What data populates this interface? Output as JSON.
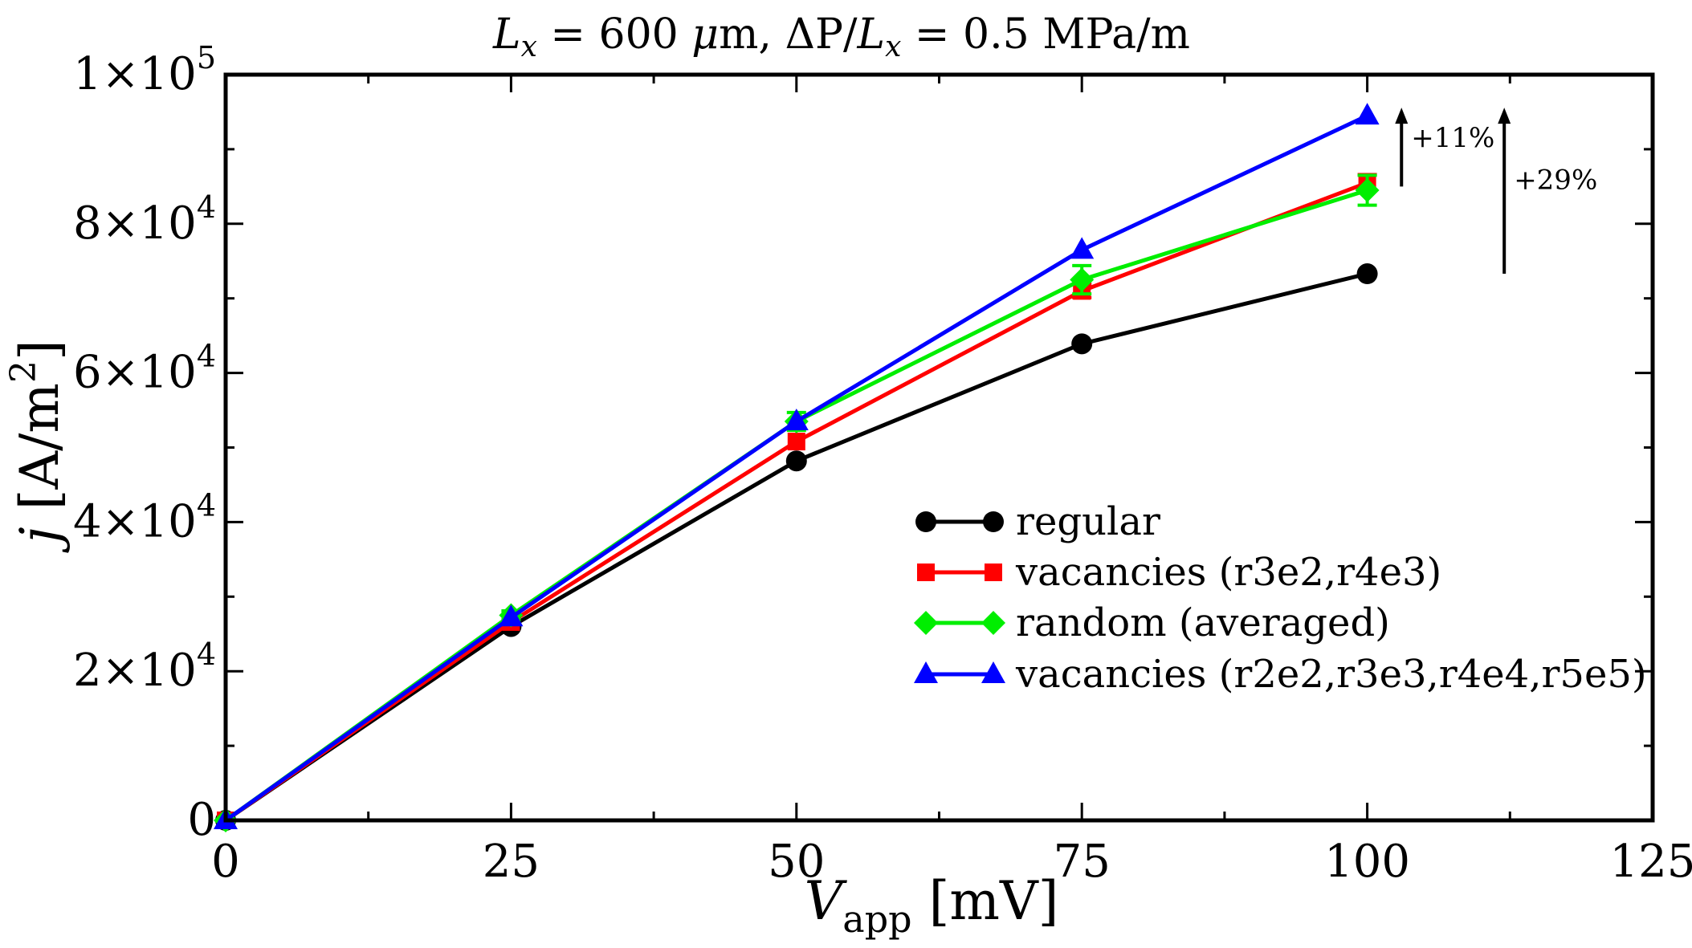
{
  "chart_data": {
    "type": "line",
    "title": "L_x = 600 μm, ΔP/L_x = 0.5 MPa/m",
    "title_parts": {
      "lx_symbol": "L",
      "lx_sub": "x",
      "eq1": " = 600 ",
      "mu": "μ",
      "unit1": "m, ",
      "delta_p": "ΔP/",
      "lx2_symbol": "L",
      "lx2_sub": "x",
      "eq2": " = 0.5 MPa/m"
    },
    "xlabel": "V_app [mV]",
    "xlabel_parts": {
      "symbol": "V",
      "sub": "app",
      "unit": " [mV]"
    },
    "ylabel": "j [A/m^2]",
    "ylabel_parts": {
      "symbol": "j",
      "unit": " [A/m",
      "sup": "2",
      "close": "]"
    },
    "xlim": [
      0,
      125
    ],
    "ylim": [
      0,
      100000
    ],
    "x": [
      0,
      25,
      50,
      75,
      100
    ],
    "xticks": [
      0,
      25,
      50,
      75,
      100,
      125
    ],
    "xtick_labels": [
      "0",
      "25",
      "50",
      "75",
      "100",
      "125"
    ],
    "yticks": [
      0,
      20000,
      40000,
      60000,
      80000,
      100000
    ],
    "ytick_labels": [
      {
        "base": "0",
        "exp": ""
      },
      {
        "base": "2×10",
        "exp": "4"
      },
      {
        "base": "4×10",
        "exp": "4"
      },
      {
        "base": "6×10",
        "exp": "4"
      },
      {
        "base": "8×10",
        "exp": "4"
      },
      {
        "base": "1×10",
        "exp": "5"
      }
    ],
    "grid": false,
    "legend_position": "lower-right",
    "series": [
      {
        "name": "regular",
        "color": "#000000",
        "marker": "circle",
        "values": [
          0,
          26000,
          48200,
          63900,
          73300
        ]
      },
      {
        "name": "vacancies (r3e2,r4e3)",
        "color": "#ff0000",
        "marker": "square",
        "values": [
          0,
          26600,
          50800,
          71000,
          85500
        ],
        "errors": [
          0,
          0,
          0,
          900,
          1100
        ]
      },
      {
        "name": "random (averaged)",
        "color": "#00ee00",
        "marker": "diamond",
        "values": [
          0,
          27500,
          53500,
          72500,
          84500
        ],
        "errors": [
          0,
          600,
          1200,
          1900,
          2000
        ]
      },
      {
        "name": "vacancies (r2e2,r3e3,r4e4,r5e5)",
        "color": "#0000ff",
        "marker": "triangle",
        "values": [
          0,
          27200,
          53500,
          76500,
          94500
        ]
      }
    ],
    "annotations": [
      {
        "text": "+11%",
        "x": 103,
        "y_from": 85000,
        "y_to": 94500
      },
      {
        "text": "+29%",
        "x": 112,
        "y_from": 73300,
        "y_to": 94500
      }
    ]
  }
}
